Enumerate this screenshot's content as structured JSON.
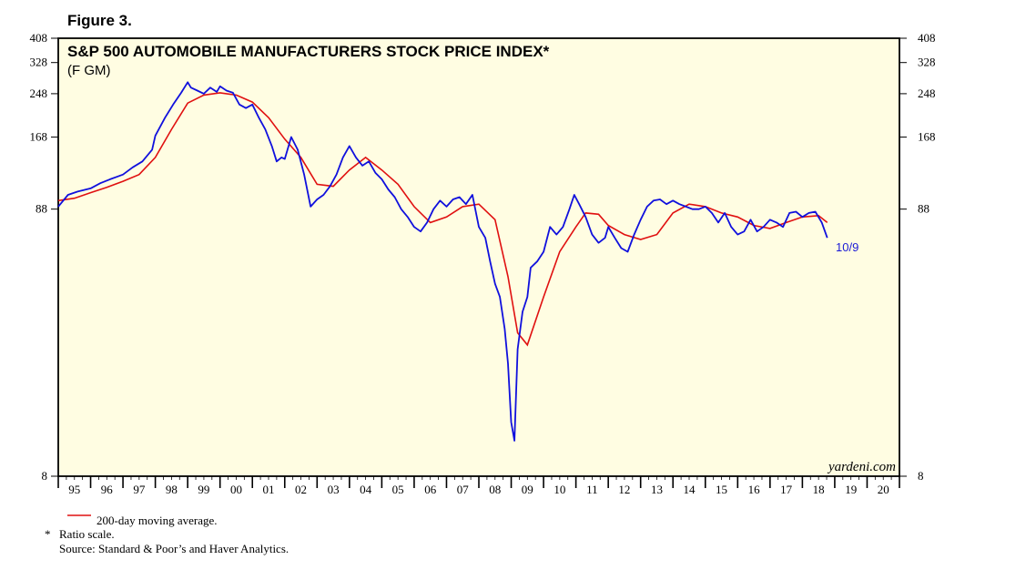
{
  "figure_label": "Figure 3.",
  "watermark": "yardeni.com",
  "footnotes": {
    "legend_ma": "200-day moving average.",
    "ratio_star": "*",
    "ratio_text": "Ratio scale.",
    "source": "Source: Standard & Poor’s and Haver Analytics."
  },
  "colors": {
    "plot_bg": "#fffde2",
    "index_line": "#1010dd",
    "ma_line": "#e01010",
    "frame": "#000000"
  },
  "chart_data": {
    "type": "line",
    "title": "S&P 500 AUTOMOBILE MANUFACTURERS STOCK PRICE INDEX*",
    "subtitle": "(F GM)",
    "scale": "log",
    "ylim": [
      8,
      408
    ],
    "yticks": [
      8,
      88,
      168,
      248,
      328,
      408
    ],
    "ytick_labels": [
      "8",
      "88",
      "168",
      "248",
      "328",
      "408"
    ],
    "xlim": [
      1995.0,
      2021.0
    ],
    "xtick_labels": [
      "95",
      "96",
      "97",
      "98",
      "99",
      "00",
      "01",
      "02",
      "03",
      "04",
      "05",
      "06",
      "07",
      "08",
      "09",
      "10",
      "11",
      "12",
      "13",
      "14",
      "15",
      "16",
      "17",
      "18",
      "19",
      "20"
    ],
    "end_label": "10/9",
    "series": [
      {
        "name": "S&P 500 Automobile Manufacturers Stock Price Index",
        "x": [
          1995.0,
          1995.3,
          1995.6,
          1996.0,
          1996.3,
          1996.6,
          1997.0,
          1997.3,
          1997.6,
          1997.9,
          1998.0,
          1998.3,
          1998.55,
          1998.8,
          1999.0,
          1999.1,
          1999.3,
          1999.5,
          1999.7,
          1999.9,
          2000.0,
          2000.2,
          2000.4,
          2000.6,
          2000.8,
          2001.0,
          2001.2,
          2001.4,
          2001.6,
          2001.75,
          2001.9,
          2002.0,
          2002.2,
          2002.4,
          2002.6,
          2002.8,
          2003.0,
          2003.2,
          2003.4,
          2003.6,
          2003.8,
          2004.0,
          2004.2,
          2004.4,
          2004.6,
          2004.8,
          2005.0,
          2005.2,
          2005.4,
          2005.6,
          2005.8,
          2006.0,
          2006.2,
          2006.4,
          2006.6,
          2006.8,
          2007.0,
          2007.2,
          2007.4,
          2007.6,
          2007.8,
          2008.0,
          2008.2,
          2008.35,
          2008.5,
          2008.65,
          2008.8,
          2008.9,
          2009.0,
          2009.1,
          2009.2,
          2009.35,
          2009.5,
          2009.6,
          2009.8,
          2010.0,
          2010.2,
          2010.4,
          2010.6,
          2010.8,
          2010.95,
          2011.1,
          2011.3,
          2011.5,
          2011.7,
          2011.9,
          2012.0,
          2012.2,
          2012.4,
          2012.6,
          2012.8,
          2013.0,
          2013.2,
          2013.4,
          2013.6,
          2013.8,
          2014.0,
          2014.2,
          2014.4,
          2014.6,
          2014.8,
          2015.0,
          2015.2,
          2015.4,
          2015.6,
          2015.8,
          2016.0,
          2016.2,
          2016.4,
          2016.6,
          2016.8,
          2017.0,
          2017.2,
          2017.4,
          2017.6,
          2017.8,
          2018.0,
          2018.2,
          2018.4,
          2018.6,
          2018.77
        ],
        "values": [
          90,
          100,
          103,
          106,
          111,
          115,
          120,
          128,
          135,
          150,
          170,
          200,
          225,
          250,
          275,
          262,
          255,
          248,
          262,
          252,
          265,
          255,
          250,
          225,
          218,
          225,
          200,
          180,
          155,
          135,
          140,
          138,
          168,
          150,
          120,
          90,
          96,
          100,
          108,
          120,
          140,
          155,
          140,
          130,
          135,
          122,
          115,
          105,
          98,
          88,
          82,
          75,
          72,
          78,
          88,
          95,
          90,
          96,
          98,
          92,
          100,
          75,
          68,
          55,
          45,
          40,
          30,
          22,
          13,
          11,
          25,
          35,
          40,
          52,
          55,
          60,
          75,
          70,
          75,
          88,
          100,
          92,
          82,
          70,
          65,
          68,
          75,
          68,
          62,
          60,
          70,
          80,
          90,
          95,
          96,
          92,
          95,
          92,
          90,
          88,
          88,
          90,
          85,
          78,
          85,
          75,
          70,
          72,
          80,
          72,
          75,
          80,
          78,
          75,
          85,
          86,
          82,
          85,
          86,
          78,
          68
        ]
      },
      {
        "name": "200-day moving average",
        "x": [
          1995.0,
          1995.5,
          1996.0,
          1996.5,
          1997.0,
          1997.5,
          1998.0,
          1998.5,
          1999.0,
          1999.5,
          2000.0,
          2000.5,
          2001.0,
          2001.5,
          2002.0,
          2002.5,
          2003.0,
          2003.5,
          2004.0,
          2004.5,
          2005.0,
          2005.5,
          2006.0,
          2006.5,
          2007.0,
          2007.5,
          2008.0,
          2008.5,
          2008.9,
          2009.2,
          2009.5,
          2010.0,
          2010.5,
          2011.0,
          2011.3,
          2011.7,
          2012.0,
          2012.5,
          2013.0,
          2013.5,
          2014.0,
          2014.5,
          2015.0,
          2015.5,
          2016.0,
          2016.5,
          2017.0,
          2017.5,
          2018.0,
          2018.5,
          2018.77
        ],
        "values": [
          95,
          97,
          102,
          107,
          113,
          120,
          140,
          180,
          228,
          245,
          250,
          245,
          230,
          200,
          165,
          140,
          110,
          108,
          125,
          140,
          125,
          110,
          90,
          78,
          82,
          90,
          92,
          80,
          48,
          29,
          26,
          40,
          60,
          75,
          85,
          84,
          76,
          70,
          67,
          70,
          85,
          92,
          90,
          85,
          82,
          76,
          74,
          78,
          82,
          83,
          78
        ]
      }
    ]
  }
}
